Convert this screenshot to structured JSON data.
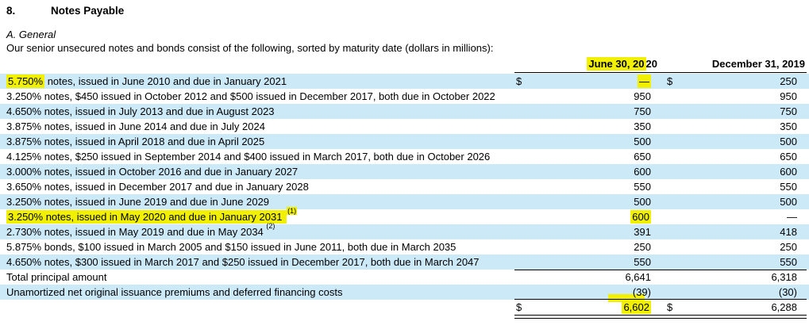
{
  "section": {
    "number": "8.",
    "title": "Notes Payable"
  },
  "subsection_title": "A. General",
  "intro_text": "Our senior unsecured notes and bonds consist of the following, sorted by maturity date (dollars in millions):",
  "colors": {
    "highlight": "#f0f000",
    "row_shading": "#cce9f8"
  },
  "table": {
    "column_headers": {
      "june_hl": "June 30, 20",
      "june_rest": "20",
      "december": "December 31, 2019"
    },
    "rows": [
      {
        "desc_hl": "5.750%",
        "desc": " notes, issued in June 2010 and due in January 2021",
        "sup": "",
        "jun_cur": "$",
        "jun": "—",
        "dec_cur": "$",
        "dec": "250"
      },
      {
        "desc_hl": "",
        "desc": "3.250% notes, $450 issued in October 2012 and $500 issued in December 2017, both due in October 2022",
        "sup": "",
        "jun_cur": "",
        "jun": "950",
        "dec_cur": "",
        "dec": "950"
      },
      {
        "desc_hl": "",
        "desc": "4.650% notes, issued in July 2013 and due in August 2023",
        "sup": "",
        "jun_cur": "",
        "jun": "750",
        "dec_cur": "",
        "dec": "750"
      },
      {
        "desc_hl": "",
        "desc": "3.875% notes, issued in June 2014 and due in July 2024",
        "sup": "",
        "jun_cur": "",
        "jun": "350",
        "dec_cur": "",
        "dec": "350"
      },
      {
        "desc_hl": "",
        "desc": "3.875% notes, issued in April 2018 and due in April 2025",
        "sup": "",
        "jun_cur": "",
        "jun": "500",
        "dec_cur": "",
        "dec": "500"
      },
      {
        "desc_hl": "",
        "desc": "4.125% notes, $250 issued in September 2014 and $400 issued in March 2017, both due in October 2026",
        "sup": "",
        "jun_cur": "",
        "jun": "650",
        "dec_cur": "",
        "dec": "650"
      },
      {
        "desc_hl": "",
        "desc": "3.000% notes, issued in October 2016 and due in January 2027",
        "sup": "",
        "jun_cur": "",
        "jun": "600",
        "dec_cur": "",
        "dec": "600"
      },
      {
        "desc_hl": "",
        "desc": "3.650% notes, issued in December 2017 and due in January 2028",
        "sup": "",
        "jun_cur": "",
        "jun": "550",
        "dec_cur": "",
        "dec": "550"
      },
      {
        "desc_hl": "",
        "desc": "3.250% notes, issued in June 2019 and due in June 2029",
        "sup": "",
        "jun_cur": "",
        "jun": "500",
        "dec_cur": "",
        "dec": "500"
      },
      {
        "desc_hl": "3.250% notes, issued in May 2020 and due in January 2031 ",
        "desc": "",
        "sup": "(1)",
        "jun_cur": "",
        "jun": "600",
        "dec_cur": "",
        "dec": "—"
      },
      {
        "desc_hl": "",
        "desc": "2.730% notes, issued in May 2019 and due in May 2034 ",
        "sup": "(2)",
        "jun_cur": "",
        "jun": "391",
        "dec_cur": "",
        "dec": "418"
      },
      {
        "desc_hl": "",
        "desc": "5.875% bonds, $100 issued in March 2005 and $150 issued in June 2011, both due in March 2035",
        "sup": "",
        "jun_cur": "",
        "jun": "250",
        "dec_cur": "",
        "dec": "250"
      },
      {
        "desc_hl": "",
        "desc": "4.650% notes, $300 issued in March 2017 and $250 issued in December 2017, both due in March 2047",
        "sup": "",
        "jun_cur": "",
        "jun": "550",
        "dec_cur": "",
        "dec": "550"
      },
      {
        "desc_hl": "",
        "desc": "Total principal amount",
        "sup": "",
        "jun_cur": "",
        "jun": "6,641",
        "dec_cur": "",
        "dec": "6,318"
      },
      {
        "desc_hl": "",
        "desc": "Unamortized net original issuance premiums and deferred financing costs",
        "sup": "",
        "jun_cur": "",
        "jun": "(39)",
        "dec_cur": "",
        "dec": "(30)"
      },
      {
        "desc_hl": "",
        "desc": "",
        "sup": "",
        "jun_cur": "$",
        "jun": "6,602",
        "dec_cur": "$",
        "dec": "6,288"
      }
    ]
  }
}
